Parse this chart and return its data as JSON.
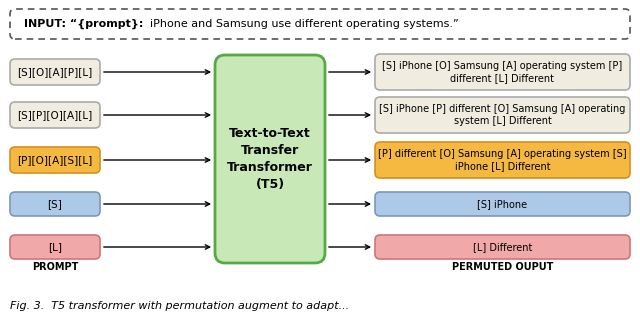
{
  "input_bold": "INPUT: \"{prompt}: ",
  "input_rest": " iPhone and Samsung use different operating systems.\"",
  "t5_label": "Text-to-Text\nTransfer\nTransformer\n(T5)",
  "prompts": [
    {
      "text": "[S][O][A][P][L]",
      "color": "#f0ede0",
      "edge": "#aaaaaa"
    },
    {
      "text": "[S][P][O][A][L]",
      "color": "#f0ede0",
      "edge": "#aaaaaa"
    },
    {
      "text": "[P][O][A][S][L]",
      "color": "#f5b942",
      "edge": "#d49020"
    },
    {
      "text": "[S]",
      "color": "#aec8e8",
      "edge": "#7799bb"
    },
    {
      "text": "[L]",
      "color": "#f0a8a8",
      "edge": "#cc7777"
    }
  ],
  "outputs": [
    {
      "text": "[S] iPhone [O] Samsung [A] operating system [P]\ndifferent [L] Different",
      "color": "#f0ede0",
      "edge": "#aaaaaa"
    },
    {
      "text": "[S] iPhone [P] different [O] Samsung [A] operating\nsystem [L] Different",
      "color": "#f0ede0",
      "edge": "#aaaaaa"
    },
    {
      "text": "[P] different [O] Samsung [A] operating system [S]\niPhone [L] Different",
      "color": "#f5b942",
      "edge": "#d49020"
    },
    {
      "text": "[S] iPhone",
      "color": "#aec8e8",
      "edge": "#7799bb"
    },
    {
      "text": "[L] Different",
      "color": "#f0a8a8",
      "edge": "#cc7777"
    }
  ],
  "t5_color": "#c8e8b8",
  "t5_edge": "#55aa44",
  "footer_left": "PROMPT",
  "footer_right": "PERMUTED OUPUT",
  "caption": "Fig. 3.  T5 transformer with permutation augment to adapt..."
}
